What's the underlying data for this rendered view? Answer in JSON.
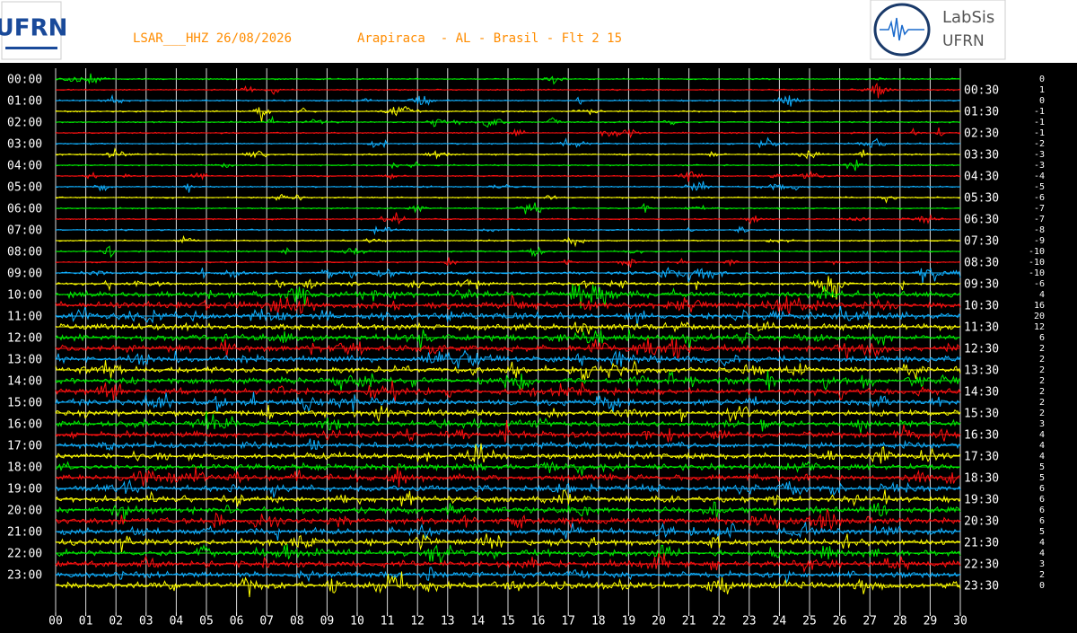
{
  "chart_data": {
    "type": "helicorder",
    "title": "LSAR___HHZ 26/08/2026",
    "subtitle": "Arapiraca  - AL - Brasil - Flt 2 15",
    "xlim": [
      0,
      30
    ],
    "xticks": [
      {
        "value": 0,
        "label": "00"
      },
      {
        "value": 1,
        "label": "01"
      },
      {
        "value": 2,
        "label": "02"
      },
      {
        "value": 3,
        "label": "03"
      },
      {
        "value": 4,
        "label": "04"
      },
      {
        "value": 5,
        "label": "05"
      },
      {
        "value": 6,
        "label": "06"
      },
      {
        "value": 7,
        "label": "07"
      },
      {
        "value": 8,
        "label": "08"
      },
      {
        "value": 9,
        "label": "09"
      },
      10,
      11,
      12,
      13,
      14,
      15,
      16,
      17,
      18,
      19,
      20,
      21,
      22,
      23,
      24,
      25,
      26,
      27,
      28,
      29,
      30
    ],
    "left_labels": [
      "00:00",
      "01:00",
      "02:00",
      "03:00",
      "04:00",
      "05:00",
      "06:00",
      "07:00",
      "08:00",
      "09:00",
      "10:00",
      "11:00",
      "12:00",
      "13:00",
      "14:00",
      "15:00",
      "16:00",
      "17:00",
      "18:00",
      "19:00",
      "20:00",
      "21:00",
      "22:00",
      "23:00"
    ],
    "right_labels": [
      "00:30",
      "01:30",
      "02:30",
      "03:30",
      "04:30",
      "05:30",
      "06:30",
      "07:30",
      "08:30",
      "09:30",
      "10:30",
      "11:30",
      "12:30",
      "13:30",
      "14:30",
      "15:30",
      "16:30",
      "17:30",
      "18:30",
      "19:30",
      "20:30",
      "21:30",
      "22:30",
      "23:30"
    ],
    "row_values": [
      0,
      1,
      0,
      -1,
      -1,
      -1,
      -2,
      -3,
      -3,
      -4,
      -5,
      -6,
      -7,
      -7,
      -8,
      -9,
      -10,
      -10,
      -10,
      -6,
      4,
      16,
      20,
      12,
      6,
      2,
      2,
      2,
      2,
      2,
      2,
      2,
      3,
      4,
      4,
      4,
      5,
      5,
      6,
      6,
      6,
      6,
      5,
      4,
      4,
      3,
      2,
      0
    ],
    "colors": [
      "#00ee00",
      "#ff1010",
      "#10b0ff",
      "#ffff00"
    ]
  },
  "logos": {
    "left": "UFRN",
    "right_title": "LabSis",
    "right_sub": "UFRN"
  }
}
